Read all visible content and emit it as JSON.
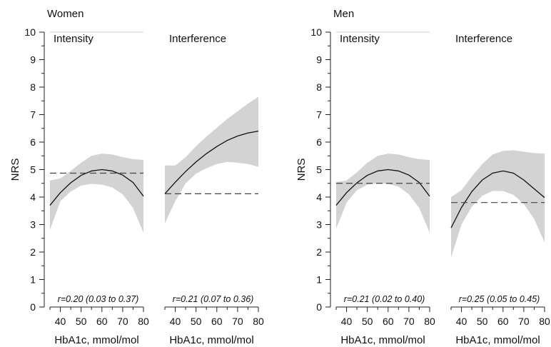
{
  "groups": [
    {
      "title": "Women"
    },
    {
      "title": "Men"
    }
  ],
  "chart_data": [
    {
      "type": "area",
      "group": "Women",
      "panel": "Intensity",
      "xlabel": "HbA1c, mmol/mol",
      "ylabel": "NRS",
      "xlim": [
        35,
        80
      ],
      "ylim": [
        0,
        10
      ],
      "xticks": [
        40,
        50,
        60,
        70,
        80
      ],
      "yticks": [
        0,
        1,
        2,
        3,
        4,
        5,
        6,
        7,
        8,
        9,
        10
      ],
      "annotation": "r=0.20 (0.03 to 0.37)",
      "mean_reference": 4.87,
      "x": [
        35,
        40,
        45,
        50,
        55,
        60,
        65,
        70,
        75,
        80
      ],
      "fit": [
        3.7,
        4.16,
        4.52,
        4.79,
        4.95,
        5.0,
        4.95,
        4.8,
        4.53,
        4.03
      ],
      "lower": [
        2.8,
        3.85,
        4.2,
        4.42,
        4.48,
        4.45,
        4.35,
        4.1,
        3.6,
        2.7
      ],
      "upper": [
        4.6,
        4.68,
        4.95,
        5.25,
        5.5,
        5.58,
        5.55,
        5.45,
        5.38,
        5.35
      ]
    },
    {
      "type": "area",
      "group": "Women",
      "panel": "Interference",
      "xlabel": "HbA1c, mmol/mol",
      "ylabel": "",
      "xlim": [
        35,
        80
      ],
      "ylim": [
        0,
        10
      ],
      "xticks": [
        40,
        50,
        60,
        70,
        80
      ],
      "yticks": [
        0,
        1,
        2,
        3,
        4,
        5,
        6,
        7,
        8,
        9,
        10
      ],
      "annotation": "r=0.21 (0.07 to 0.36)",
      "mean_reference": 4.12,
      "x": [
        35,
        40,
        45,
        50,
        55,
        60,
        65,
        70,
        75,
        80
      ],
      "fit": [
        4.12,
        4.54,
        4.93,
        5.28,
        5.58,
        5.84,
        6.06,
        6.22,
        6.33,
        6.4
      ],
      "lower": [
        3.05,
        3.85,
        4.5,
        4.85,
        5.05,
        5.2,
        5.28,
        5.25,
        5.2,
        5.1
      ],
      "upper": [
        5.15,
        5.15,
        5.45,
        5.85,
        6.2,
        6.52,
        6.84,
        7.12,
        7.4,
        7.65
      ]
    },
    {
      "type": "area",
      "group": "Men",
      "panel": "Intensity",
      "xlabel": "HbA1c, mmol/mol",
      "ylabel": "NRS",
      "xlim": [
        35,
        80
      ],
      "ylim": [
        0,
        10
      ],
      "xticks": [
        40,
        50,
        60,
        70,
        80
      ],
      "yticks": [
        0,
        1,
        2,
        3,
        4,
        5,
        6,
        7,
        8,
        9,
        10
      ],
      "annotation": "r=0.21 (0.02 to 0.40)",
      "mean_reference": 4.5,
      "x": [
        35,
        40,
        45,
        50,
        55,
        60,
        65,
        70,
        75,
        80
      ],
      "fit": [
        3.7,
        4.16,
        4.52,
        4.79,
        4.95,
        5.0,
        4.95,
        4.8,
        4.53,
        4.03
      ],
      "lower": [
        2.85,
        3.8,
        4.25,
        4.45,
        4.5,
        4.48,
        4.38,
        4.1,
        3.6,
        2.7
      ],
      "upper": [
        4.55,
        4.6,
        4.9,
        5.25,
        5.5,
        5.58,
        5.55,
        5.45,
        5.38,
        5.35
      ]
    },
    {
      "type": "area",
      "group": "Men",
      "panel": "Interference",
      "xlabel": "HbA1c, mmol/mol",
      "ylabel": "",
      "xlim": [
        35,
        80
      ],
      "ylim": [
        0,
        10
      ],
      "xticks": [
        40,
        50,
        60,
        70,
        80
      ],
      "yticks": [
        0,
        1,
        2,
        3,
        4,
        5,
        6,
        7,
        8,
        9,
        10
      ],
      "annotation": "r=0.25 (0.05 to 0.45)",
      "mean_reference": 3.8,
      "x": [
        35,
        40,
        45,
        50,
        55,
        60,
        65,
        70,
        75,
        80
      ],
      "fit": [
        2.88,
        3.62,
        4.2,
        4.62,
        4.87,
        4.95,
        4.87,
        4.62,
        4.3,
        3.98
      ],
      "lower": [
        1.8,
        3.0,
        3.65,
        4.05,
        4.22,
        4.22,
        4.08,
        3.75,
        3.2,
        2.35
      ],
      "upper": [
        4.0,
        4.25,
        4.75,
        5.2,
        5.55,
        5.68,
        5.7,
        5.65,
        5.6,
        5.58
      ]
    }
  ]
}
